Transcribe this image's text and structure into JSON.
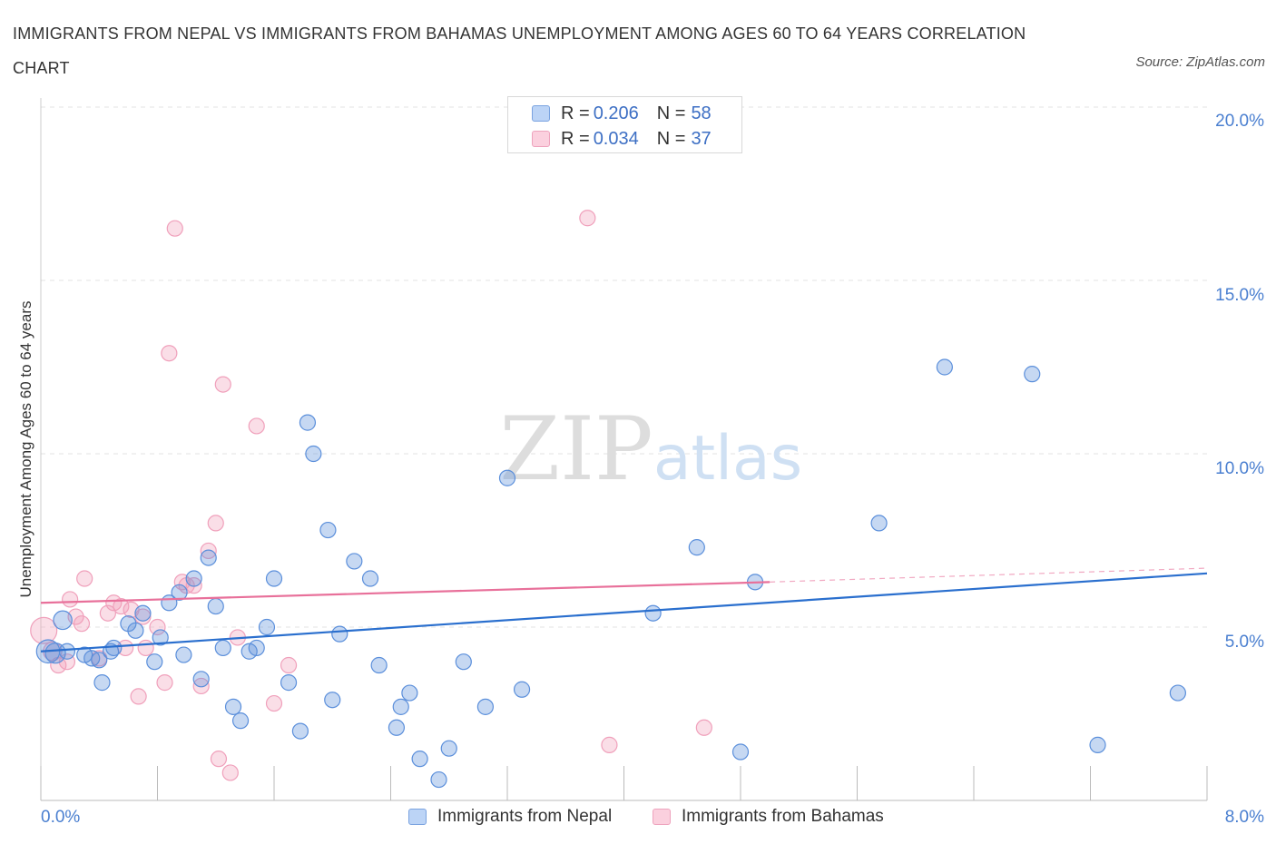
{
  "title": "IMMIGRANTS FROM NEPAL VS IMMIGRANTS FROM BAHAMAS UNEMPLOYMENT AMONG AGES 60 TO 64 YEARS CORRELATION CHART",
  "source": "Source: ZipAtlas.com",
  "watermark": {
    "zip": "ZIP",
    "atlas": "atlas"
  },
  "colors": {
    "blue": "#5b8fdb",
    "blue_line": "#2a6fce",
    "pink": "#f0a0bb",
    "pink_line": "#e8709a",
    "tick_text": "#4a7fd0"
  },
  "legend": {
    "series1": {
      "r_label": "R = ",
      "r_value": "0.206",
      "n_label": "N = ",
      "n_value": "58"
    },
    "series2": {
      "r_label": "R = ",
      "r_value": "0.034",
      "n_label": "N = ",
      "n_value": "37"
    }
  },
  "bottom_legend": {
    "series1": "Immigrants from Nepal",
    "series2": "Immigrants from Bahamas"
  },
  "chart_data": {
    "type": "scatter",
    "title": "IMMIGRANTS FROM NEPAL VS IMMIGRANTS FROM BAHAMAS UNEMPLOYMENT AMONG AGES 60 TO 64 YEARS CORRELATION CHART",
    "xlabel": "",
    "ylabel": "Unemployment Among Ages 60 to 64 years",
    "xlim": [
      0,
      8
    ],
    "ylim": [
      0,
      20
    ],
    "x_tick_labels": [
      "0.0%",
      "8.0%"
    ],
    "y_ticks": [
      5,
      10,
      15,
      20
    ],
    "y_tick_labels": [
      "5.0%",
      "10.0%",
      "15.0%",
      "20.0%"
    ],
    "grid": true,
    "legend_position": "top-center",
    "series": [
      {
        "name": "Immigrants from Nepal",
        "R": 0.206,
        "N": 58,
        "trend": {
          "x0": 0,
          "y0": 4.3,
          "x1": 8.0,
          "y1": 6.55
        },
        "points": [
          [
            0.05,
            4.3,
            1.5
          ],
          [
            0.1,
            4.25,
            1.3
          ],
          [
            0.15,
            5.2,
            1.2
          ],
          [
            0.18,
            4.3,
            1
          ],
          [
            0.3,
            4.2,
            1
          ],
          [
            0.35,
            4.1,
            1
          ],
          [
            0.4,
            4.05,
            1
          ],
          [
            0.42,
            3.4,
            1
          ],
          [
            0.48,
            4.3,
            1
          ],
          [
            0.5,
            4.4,
            1
          ],
          [
            0.6,
            5.1,
            1
          ],
          [
            0.65,
            4.9,
            1
          ],
          [
            0.7,
            5.4,
            1
          ],
          [
            0.78,
            4.0,
            1
          ],
          [
            0.82,
            4.7,
            1
          ],
          [
            0.88,
            5.7,
            1
          ],
          [
            0.95,
            6.0,
            1
          ],
          [
            0.98,
            4.2,
            1
          ],
          [
            1.05,
            6.4,
            1
          ],
          [
            1.1,
            3.5,
            1
          ],
          [
            1.15,
            7.0,
            1
          ],
          [
            1.2,
            5.6,
            1
          ],
          [
            1.25,
            4.4,
            1
          ],
          [
            1.32,
            2.7,
            1
          ],
          [
            1.37,
            2.3,
            1
          ],
          [
            1.43,
            4.3,
            1
          ],
          [
            1.48,
            4.4,
            1
          ],
          [
            1.55,
            5.0,
            1
          ],
          [
            1.6,
            6.4,
            1
          ],
          [
            1.7,
            3.4,
            1
          ],
          [
            1.78,
            2.0,
            1
          ],
          [
            1.83,
            10.9,
            1
          ],
          [
            1.87,
            10.0,
            1
          ],
          [
            1.97,
            7.8,
            1
          ],
          [
            2.0,
            2.9,
            1
          ],
          [
            2.05,
            4.8,
            1
          ],
          [
            2.15,
            6.9,
            1
          ],
          [
            2.26,
            6.4,
            1
          ],
          [
            2.32,
            3.9,
            1
          ],
          [
            2.44,
            2.1,
            1
          ],
          [
            2.47,
            2.7,
            1
          ],
          [
            2.53,
            3.1,
            1
          ],
          [
            2.6,
            1.2,
            1
          ],
          [
            2.73,
            0.6,
            1
          ],
          [
            2.8,
            1.5,
            1
          ],
          [
            2.9,
            4.0,
            1
          ],
          [
            3.05,
            2.7,
            1
          ],
          [
            3.2,
            9.3,
            1
          ],
          [
            3.3,
            3.2,
            1
          ],
          [
            4.2,
            5.4,
            1
          ],
          [
            4.5,
            7.3,
            1
          ],
          [
            4.8,
            1.4,
            1
          ],
          [
            4.9,
            6.3,
            1
          ],
          [
            5.75,
            8.0,
            1
          ],
          [
            6.2,
            12.5,
            1
          ],
          [
            6.8,
            12.3,
            1
          ],
          [
            7.25,
            1.6,
            1
          ],
          [
            7.8,
            3.1,
            1
          ]
        ]
      },
      {
        "name": "Immigrants from Bahamas",
        "R": 0.034,
        "N": 37,
        "trend": {
          "x0": 0,
          "y0": 5.7,
          "x1": 5.0,
          "y1": 6.3,
          "dashed_to_x": 8.0,
          "dashed_to_y": 6.7
        },
        "points": [
          [
            0.02,
            4.9,
            1.7
          ],
          [
            0.08,
            4.3,
            1.2
          ],
          [
            0.12,
            3.9,
            1
          ],
          [
            0.18,
            4.0,
            1
          ],
          [
            0.2,
            5.8,
            1
          ],
          [
            0.24,
            5.3,
            1
          ],
          [
            0.28,
            5.1,
            1
          ],
          [
            0.3,
            6.4,
            1
          ],
          [
            0.4,
            4.1,
            1
          ],
          [
            0.46,
            5.4,
            1
          ],
          [
            0.5,
            5.7,
            1
          ],
          [
            0.55,
            5.6,
            1
          ],
          [
            0.58,
            4.4,
            1
          ],
          [
            0.62,
            5.5,
            1
          ],
          [
            0.67,
            3.0,
            1
          ],
          [
            0.7,
            5.3,
            1
          ],
          [
            0.72,
            4.4,
            1
          ],
          [
            0.8,
            5.0,
            1
          ],
          [
            0.85,
            3.4,
            1
          ],
          [
            0.88,
            12.9,
            1
          ],
          [
            0.92,
            16.5,
            1
          ],
          [
            0.97,
            6.3,
            1
          ],
          [
            1.0,
            6.2,
            1
          ],
          [
            1.05,
            6.2,
            1
          ],
          [
            1.1,
            3.3,
            1
          ],
          [
            1.15,
            7.2,
            1
          ],
          [
            1.2,
            8.0,
            1
          ],
          [
            1.22,
            1.2,
            1
          ],
          [
            1.25,
            12.0,
            1
          ],
          [
            1.3,
            0.8,
            1
          ],
          [
            1.35,
            4.7,
            1
          ],
          [
            1.48,
            10.8,
            1
          ],
          [
            1.6,
            2.8,
            1
          ],
          [
            1.7,
            3.9,
            1
          ],
          [
            3.75,
            16.8,
            1
          ],
          [
            3.9,
            1.6,
            1
          ],
          [
            4.55,
            2.1,
            1
          ]
        ]
      }
    ]
  }
}
